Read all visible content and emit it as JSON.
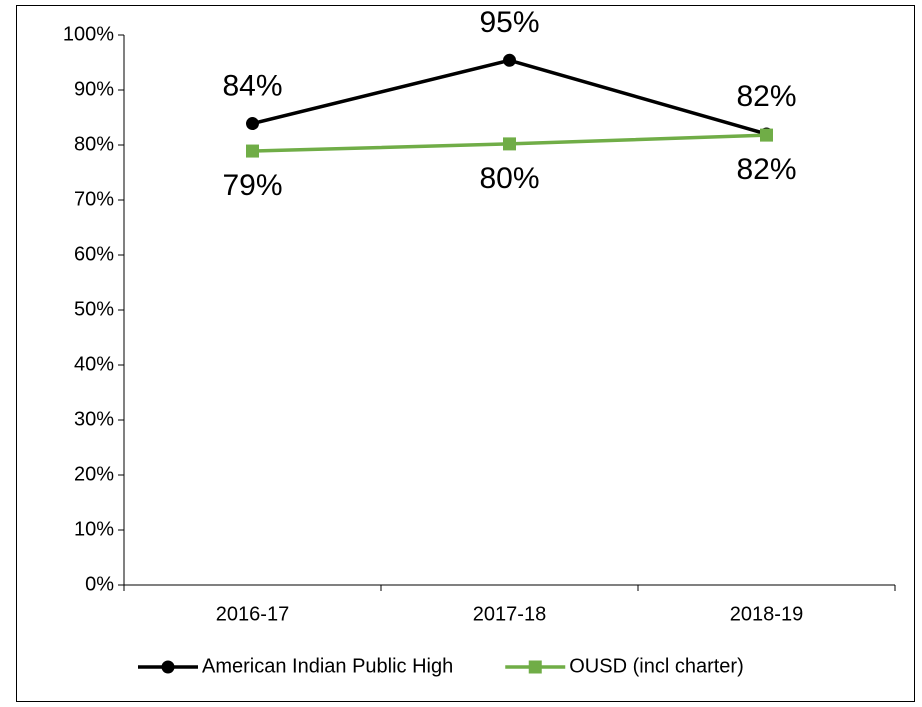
{
  "chart_data": {
    "type": "line",
    "categories": [
      "2016-17",
      "2017-18",
      "2018-19"
    ],
    "series": [
      {
        "name": "American Indian Public High",
        "color": "#000000",
        "marker": "circle",
        "values": [
          83.9,
          95.4,
          82.0
        ],
        "value_labels": [
          "84%",
          "95%",
          "82%"
        ],
        "label_position": "above"
      },
      {
        "name": "OUSD (incl charter)",
        "color": "#70ad47",
        "marker": "square",
        "values": [
          78.9,
          80.2,
          81.8
        ],
        "value_labels": [
          "79%",
          "80%",
          "82%"
        ],
        "label_position": "below"
      }
    ],
    "ylim": [
      0,
      100
    ],
    "yticks": [
      {
        "value": 0,
        "label": "0%"
      },
      {
        "value": 10,
        "label": "10%"
      },
      {
        "value": 20,
        "label": "20%"
      },
      {
        "value": 30,
        "label": "30%"
      },
      {
        "value": 40,
        "label": "40%"
      },
      {
        "value": 50,
        "label": "50%"
      },
      {
        "value": 60,
        "label": "60%"
      },
      {
        "value": 70,
        "label": "70%"
      },
      {
        "value": 80,
        "label": "80%"
      },
      {
        "value": 90,
        "label": "90%"
      },
      {
        "value": 100,
        "label": "100%"
      }
    ],
    "grid": false,
    "legend": "bottom"
  }
}
